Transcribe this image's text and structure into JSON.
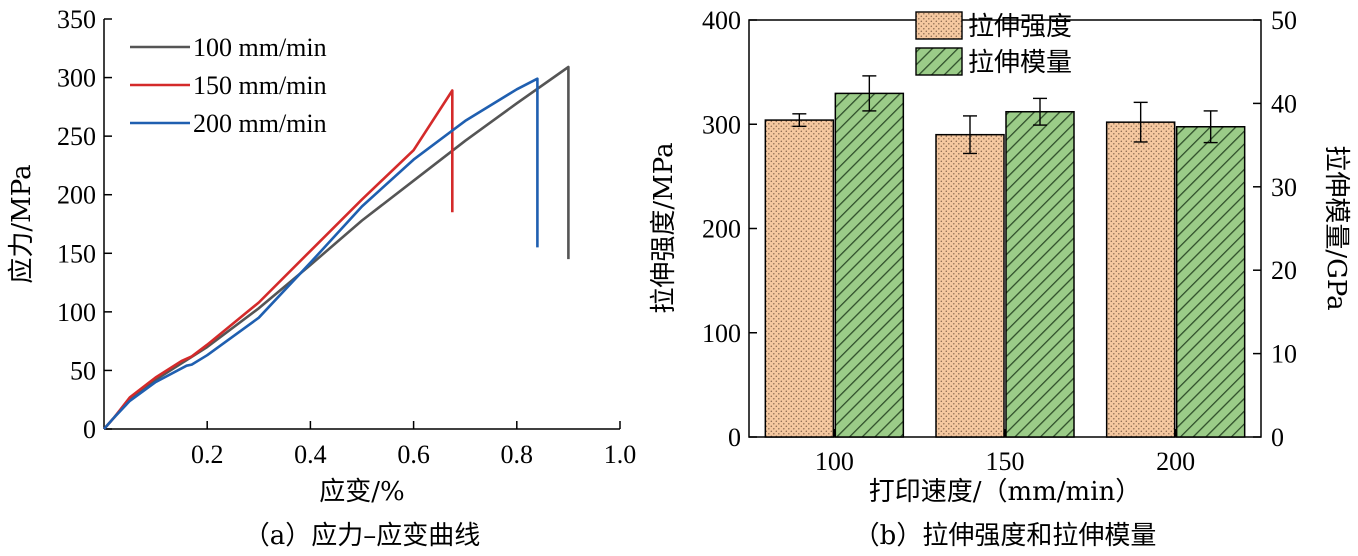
{
  "chart_data": [
    {
      "type": "line",
      "caption": "（a）应力–应变曲线",
      "xlabel": "应变/%",
      "ylabel": "应力/MPa",
      "xlim": [
        0,
        1.0
      ],
      "ylim": [
        0,
        350
      ],
      "xticks": [
        "0.2",
        "0.4",
        "0.6",
        "0.8",
        "1.0"
      ],
      "yticks": [
        "0",
        "50",
        "100",
        "150",
        "200",
        "250",
        "300",
        "350"
      ],
      "grid": false,
      "legend_position": "top-left",
      "series": [
        {
          "name": "100 mm/min",
          "color": "#555555",
          "x": [
            0,
            0.02,
            0.05,
            0.1,
            0.15,
            0.2,
            0.3,
            0.4,
            0.5,
            0.6,
            0.7,
            0.8,
            0.9,
            0.9
          ],
          "y": [
            0,
            10,
            25,
            42,
            56,
            70,
            103,
            140,
            178,
            212,
            246,
            278,
            309,
            145
          ]
        },
        {
          "name": "150 mm/min",
          "color": "#d42a2a",
          "x": [
            0,
            0.02,
            0.05,
            0.1,
            0.15,
            0.17,
            0.2,
            0.3,
            0.4,
            0.5,
            0.6,
            0.675,
            0.675
          ],
          "y": [
            0,
            10,
            27,
            44,
            58,
            62,
            72,
            108,
            152,
            196,
            238,
            289,
            185
          ]
        },
        {
          "name": "200 mm/min",
          "color": "#1f5fb0",
          "x": [
            0,
            0.02,
            0.05,
            0.1,
            0.16,
            0.17,
            0.2,
            0.3,
            0.4,
            0.5,
            0.6,
            0.7,
            0.8,
            0.84,
            0.84
          ],
          "y": [
            0,
            10,
            24,
            40,
            54,
            55,
            63,
            95,
            142,
            190,
            230,
            263,
            290,
            299,
            155
          ]
        }
      ]
    },
    {
      "type": "bar",
      "caption": "（b）拉伸强度和拉伸模量",
      "xlabel": "打印速度/（mm/min）",
      "ylabel": "拉伸强度/MPa",
      "ylabel_right": "拉伸模量/GPa",
      "categories": [
        "100",
        "150",
        "200"
      ],
      "ylim": [
        0,
        400
      ],
      "ylim_right": [
        0,
        50
      ],
      "yticks": [
        "0",
        "100",
        "200",
        "300",
        "400"
      ],
      "yticks_right": [
        "0",
        "10",
        "20",
        "30",
        "40",
        "50"
      ],
      "legend_position": "top-center",
      "series": [
        {
          "name": "拉伸强度",
          "axis": "left",
          "color": "#f5c8a0",
          "values": [
            304,
            290,
            302
          ],
          "errors": [
            6,
            18,
            19
          ]
        },
        {
          "name": "拉伸模量",
          "axis": "right",
          "color": "#9bcc88",
          "values": [
            41.2,
            39.0,
            37.2
          ],
          "errors": [
            2.1,
            1.6,
            1.9
          ]
        }
      ]
    }
  ]
}
